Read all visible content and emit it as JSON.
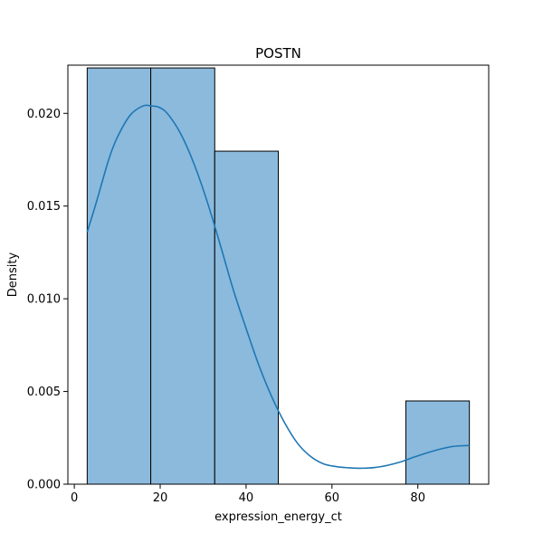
{
  "chart_data": {
    "type": "bar",
    "title": "POSTN",
    "xlabel": "expression_energy_ct",
    "ylabel": "Density",
    "xlim": [
      -1.5,
      96.5
    ],
    "ylim": [
      0,
      0.0226
    ],
    "x_ticks": [
      0,
      20,
      40,
      60,
      80
    ],
    "y_ticks": [
      0.0,
      0.005,
      0.01,
      0.015,
      0.02
    ],
    "y_tick_labels": [
      "0.000",
      "0.005",
      "0.010",
      "0.015",
      "0.020"
    ],
    "bins": [
      {
        "x0": 3.0,
        "x1": 17.8,
        "density": 0.02245
      },
      {
        "x0": 17.8,
        "x1": 32.7,
        "density": 0.02245
      },
      {
        "x0": 32.7,
        "x1": 47.5,
        "density": 0.01796
      },
      {
        "x0": 47.5,
        "x1": 62.3,
        "density": 0.0
      },
      {
        "x0": 62.3,
        "x1": 77.2,
        "density": 0.0
      },
      {
        "x0": 77.2,
        "x1": 92.0,
        "density": 0.00449
      }
    ],
    "kde": {
      "x": [
        3,
        5,
        8,
        10,
        13,
        16,
        18,
        20,
        22,
        25,
        28,
        31,
        34,
        37,
        40,
        43,
        46,
        49,
        52,
        55,
        58,
        61,
        64,
        67,
        70,
        73,
        76,
        79,
        82,
        85,
        88,
        91,
        92
      ],
      "y": [
        0.0136,
        0.0151,
        0.0175,
        0.0187,
        0.0199,
        0.0204,
        0.0204,
        0.0203,
        0.0199,
        0.0188,
        0.0172,
        0.0152,
        0.0129,
        0.0105,
        0.0084,
        0.0064,
        0.0047,
        0.0033,
        0.0022,
        0.0015,
        0.0011,
        0.00095,
        0.00088,
        0.00086,
        0.0009,
        0.00102,
        0.0012,
        0.00145,
        0.00168,
        0.00188,
        0.00203,
        0.00208,
        0.00208
      ]
    },
    "colors": {
      "bar_fill": "#8bbadd",
      "bar_edge": "#000000",
      "kde_line": "#1f77b4"
    },
    "grid": false,
    "legend": "none"
  }
}
